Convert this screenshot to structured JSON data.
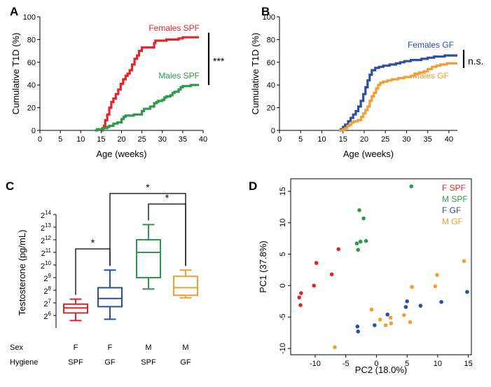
{
  "chart_data": [
    {
      "panel": "A",
      "type": "line",
      "xlabel": "Age (weeks)",
      "ylabel": "Cumulative T1D (%)",
      "xlim": [
        0,
        40
      ],
      "ylim": [
        0,
        100
      ],
      "xticks": [
        0,
        5,
        10,
        15,
        20,
        25,
        30,
        35,
        40
      ],
      "yticks": [
        0,
        20,
        40,
        60,
        80,
        100
      ],
      "significance": "***",
      "series": [
        {
          "name": "Females SPF",
          "color": "#e0262c",
          "points": [
            [
              15,
              0
            ],
            [
              15.3,
              2
            ],
            [
              15.7,
              4
            ],
            [
              16,
              9
            ],
            [
              16.5,
              14
            ],
            [
              17,
              20
            ],
            [
              17.5,
              25
            ],
            [
              18,
              28
            ],
            [
              18.6,
              32
            ],
            [
              19.2,
              36
            ],
            [
              19.8,
              41
            ],
            [
              20.4,
              45
            ],
            [
              21,
              48
            ],
            [
              21.5,
              50
            ],
            [
              22,
              53
            ],
            [
              22.6,
              58
            ],
            [
              23.2,
              63
            ],
            [
              23.8,
              66
            ],
            [
              24.3,
              70
            ],
            [
              25,
              73
            ],
            [
              26.5,
              73
            ],
            [
              27.5,
              73
            ],
            [
              28,
              77
            ],
            [
              28.3,
              79
            ],
            [
              30,
              79
            ],
            [
              31,
              80
            ],
            [
              33,
              80
            ],
            [
              34,
              81
            ],
            [
              35,
              82
            ],
            [
              37,
              82
            ],
            [
              39,
              82
            ]
          ]
        },
        {
          "name": "Males SPF",
          "color": "#2d9a4a",
          "points": [
            [
              13.5,
              0
            ],
            [
              14,
              1
            ],
            [
              15.5,
              2
            ],
            [
              16.5,
              3
            ],
            [
              17,
              4
            ],
            [
              18,
              6
            ],
            [
              19,
              7
            ],
            [
              20,
              10
            ],
            [
              20.5,
              12
            ],
            [
              21,
              13
            ],
            [
              23,
              14
            ],
            [
              24.5,
              14
            ],
            [
              25,
              17
            ],
            [
              25.5,
              19
            ],
            [
              27,
              21
            ],
            [
              28,
              24
            ],
            [
              28.6,
              25
            ],
            [
              29,
              26
            ],
            [
              30,
              27
            ],
            [
              30.5,
              29
            ],
            [
              31,
              30
            ],
            [
              32,
              31
            ],
            [
              32.5,
              33
            ],
            [
              33,
              34
            ],
            [
              34,
              36
            ],
            [
              34.5,
              38
            ],
            [
              35,
              39
            ],
            [
              36,
              39
            ],
            [
              37,
              40
            ],
            [
              39,
              40
            ]
          ]
        }
      ]
    },
    {
      "panel": "B",
      "type": "line",
      "xlabel": "Age (weeks)",
      "ylabel": "Cumulative T1D (%)",
      "xlim": [
        0,
        42
      ],
      "ylim": [
        0,
        100
      ],
      "xticks": [
        0,
        5,
        10,
        15,
        20,
        25,
        30,
        35,
        40
      ],
      "yticks": [
        0,
        20,
        40,
        60,
        80,
        100
      ],
      "significance": "n.s.",
      "series": [
        {
          "name": "Females GF",
          "color": "#2f4ea0",
          "points": [
            [
              14,
              0
            ],
            [
              14.5,
              1
            ],
            [
              15,
              3
            ],
            [
              15.5,
              5
            ],
            [
              16.2,
              8
            ],
            [
              16.8,
              11
            ],
            [
              17.4,
              14
            ],
            [
              18,
              17
            ],
            [
              18.6,
              21
            ],
            [
              19.2,
              26
            ],
            [
              19.8,
              32
            ],
            [
              20.3,
              38
            ],
            [
              20.8,
              44
            ],
            [
              21.3,
              49
            ],
            [
              21.8,
              53
            ],
            [
              22.6,
              55
            ],
            [
              23.5,
              56
            ],
            [
              24.5,
              57
            ],
            [
              26,
              58
            ],
            [
              27.5,
              59
            ],
            [
              28.5,
              60
            ],
            [
              29.5,
              61
            ],
            [
              31,
              62
            ],
            [
              32.5,
              62
            ],
            [
              33.5,
              63
            ],
            [
              35,
              64
            ],
            [
              36.5,
              65
            ],
            [
              38,
              65
            ],
            [
              39,
              66
            ],
            [
              40,
              66
            ],
            [
              41,
              66
            ],
            [
              42,
              66
            ]
          ]
        },
        {
          "name": "Males GF",
          "color": "#f0a033",
          "points": [
            [
              14,
              0
            ],
            [
              15,
              1
            ],
            [
              15.5,
              2
            ],
            [
              16,
              4
            ],
            [
              16.5,
              5
            ],
            [
              17,
              7
            ],
            [
              17.5,
              8
            ],
            [
              18.5,
              9
            ],
            [
              19.3,
              12
            ],
            [
              19.8,
              15
            ],
            [
              20.3,
              18
            ],
            [
              20.8,
              21
            ],
            [
              21.3,
              26
            ],
            [
              21.8,
              30
            ],
            [
              22.3,
              33
            ],
            [
              22.8,
              37
            ],
            [
              23.3,
              40
            ],
            [
              23.8,
              42
            ],
            [
              24.5,
              43
            ],
            [
              25.5,
              44
            ],
            [
              26.5,
              45
            ],
            [
              28,
              46
            ],
            [
              29.5,
              47
            ],
            [
              31,
              48
            ],
            [
              32,
              50
            ],
            [
              33,
              51
            ],
            [
              34,
              52
            ],
            [
              35,
              54
            ],
            [
              36,
              56
            ],
            [
              37,
              57
            ],
            [
              38,
              58
            ],
            [
              39.5,
              59
            ],
            [
              41,
              59
            ],
            [
              42,
              59
            ]
          ]
        }
      ]
    },
    {
      "panel": "C",
      "type": "box",
      "ylabel": "Testosterone (pg/mL)",
      "ytick_base": "2",
      "ytick_exponents": [
        "6",
        "7",
        "8",
        "9",
        "10",
        "11",
        "12",
        "13",
        "14"
      ],
      "xrow_labels": [
        "Sex",
        "Hygiene"
      ],
      "categories": [
        {
          "sex": "F",
          "hygiene": "SPF",
          "color": "#e0262c",
          "whislo": 5.6,
          "q1": 6.2,
          "med": 6.6,
          "q3": 6.9,
          "whishi": 7.3
        },
        {
          "sex": "F",
          "hygiene": "GF",
          "color": "#2f4ea0",
          "whislo": 5.7,
          "q1": 6.7,
          "med": 7.35,
          "q3": 8.2,
          "whishi": 9.6
        },
        {
          "sex": "M",
          "hygiene": "SPF",
          "color": "#2d9a4a",
          "whislo": 8.1,
          "q1": 9.0,
          "med": 11.0,
          "q3": 12.0,
          "whishi": 13.2
        },
        {
          "sex": "M",
          "hygiene": "GF",
          "color": "#f0a033",
          "whislo": 7.4,
          "q1": 7.6,
          "med": 8.2,
          "q3": 9.1,
          "whishi": 9.6
        }
      ],
      "comparisons": [
        {
          "from": 0,
          "to": 1,
          "label": "*"
        },
        {
          "from": 2,
          "to": 3,
          "label": "*"
        },
        {
          "from": 1,
          "to": 3,
          "label": "*"
        }
      ]
    },
    {
      "panel": "D",
      "type": "scatter",
      "xlabel": "PC2 (18.0%)",
      "ylabel": "PC1 (37.8%)",
      "xlim": [
        -14,
        15.5
      ],
      "ylim": [
        -11,
        17
      ],
      "xticks": [
        -10,
        -5,
        0,
        5,
        10,
        15
      ],
      "yticks": [
        -10,
        -5,
        0,
        5,
        10,
        15
      ],
      "legend_position": "top-right",
      "series": [
        {
          "name": "F SPF",
          "color": "#e0262c",
          "points": [
            [
              -12.3,
              -1.2
            ],
            [
              -12.6,
              -1.9
            ],
            [
              -12.4,
              -3.1
            ],
            [
              -10.2,
              0
            ],
            [
              -9.8,
              3.6
            ],
            [
              -7.3,
              1.8
            ],
            [
              -6.2,
              5.8
            ]
          ]
        },
        {
          "name": "M SPF",
          "color": "#2d9a4a",
          "points": [
            [
              -2.8,
              12.0
            ],
            [
              -3.2,
              6.7
            ],
            [
              -2.6,
              7.0
            ],
            [
              -3.0,
              5.7
            ],
            [
              -1.7,
              7.1
            ],
            [
              -2.1,
              10.7
            ],
            [
              5.7,
              15.8
            ]
          ]
        },
        {
          "name": "F GF",
          "color": "#2f4ea0",
          "points": [
            [
              -3.1,
              -6.5
            ],
            [
              -3.0,
              -7.3
            ],
            [
              -0.3,
              -6.3
            ],
            [
              1.8,
              -4.6
            ],
            [
              4.8,
              -3.4
            ],
            [
              5.0,
              -2.5
            ],
            [
              7.2,
              -3.2
            ],
            [
              10.6,
              -2.6
            ],
            [
              14.8,
              -1.0
            ]
          ]
        },
        {
          "name": "M GF",
          "color": "#f0a033",
          "points": [
            [
              -6.8,
              -9.8
            ],
            [
              -0.8,
              -3.8
            ],
            [
              0.6,
              -5.4
            ],
            [
              1.5,
              -6.3
            ],
            [
              2.3,
              -5.1
            ],
            [
              2.4,
              -6.0
            ],
            [
              4.5,
              -4.7
            ],
            [
              5.5,
              -5.8
            ],
            [
              5.8,
              -0.2
            ],
            [
              9.6,
              -0.1
            ],
            [
              9.9,
              1.7
            ],
            [
              14.3,
              3.9
            ]
          ]
        }
      ]
    }
  ]
}
